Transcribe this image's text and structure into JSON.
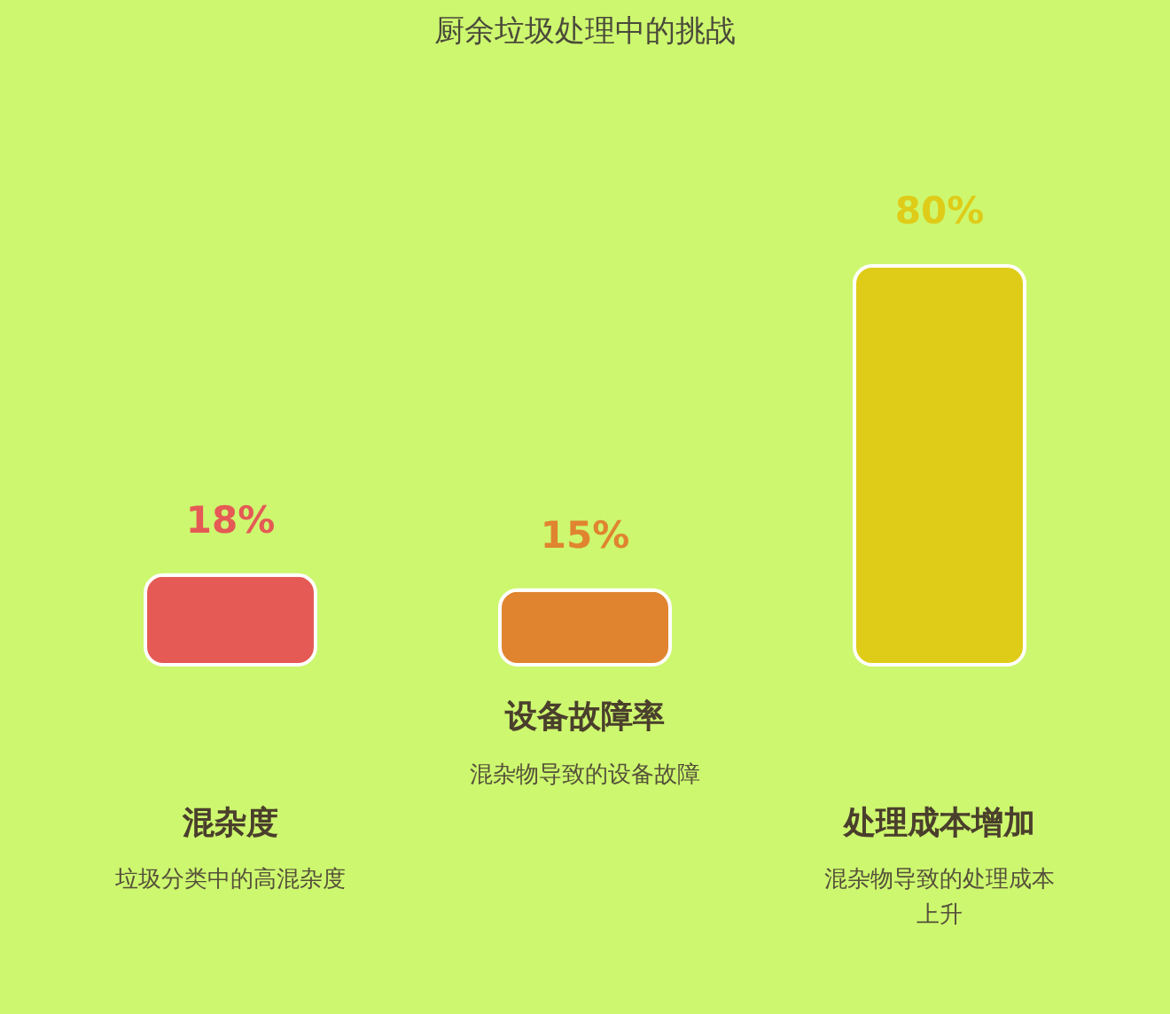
{
  "chart_data": {
    "type": "bar",
    "title": "厨余垃圾处理中的挑战",
    "categories": [
      "混杂度",
      "设备故障率",
      "处理成本增加"
    ],
    "values": [
      18,
      15,
      80
    ],
    "colors": [
      "#e55a55",
      "#e08430",
      "#dfcc18"
    ],
    "value_labels": [
      "18%",
      "15%",
      "80%"
    ],
    "annotations": [
      "垃圾分类中的高混杂度",
      "混杂物导致的设备故障",
      "混杂物导致的处理成本上升"
    ],
    "tick_labels": "x"
  }
}
